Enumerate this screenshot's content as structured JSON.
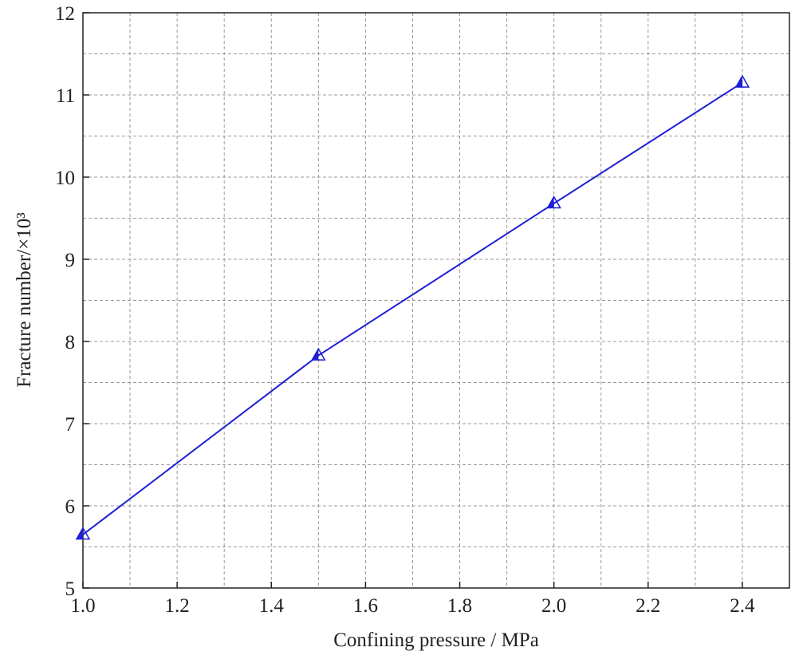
{
  "chart_data": {
    "type": "line",
    "x_label": "Confining pressure / MPa",
    "y_label": "Fracture number/×10³",
    "x": [
      1.0,
      1.5,
      2.0,
      2.4
    ],
    "series": [
      {
        "color": "#1f1fd6",
        "marker": "triangle",
        "values": [
          5.65,
          7.83,
          9.68,
          11.15
        ]
      }
    ],
    "xlim": [
      1.0,
      2.5
    ],
    "xticks": [
      {
        "value": 1,
        "label": "1.0"
      },
      1.2,
      1.4,
      1.6,
      1.8,
      {
        "value": 2,
        "label": "2.0"
      },
      2.2,
      2.4
    ],
    "ylim": [
      5,
      12
    ],
    "yticks": [
      5,
      6,
      7,
      8,
      9,
      10,
      11,
      12
    ],
    "grid": true,
    "minor_grid": true
  }
}
